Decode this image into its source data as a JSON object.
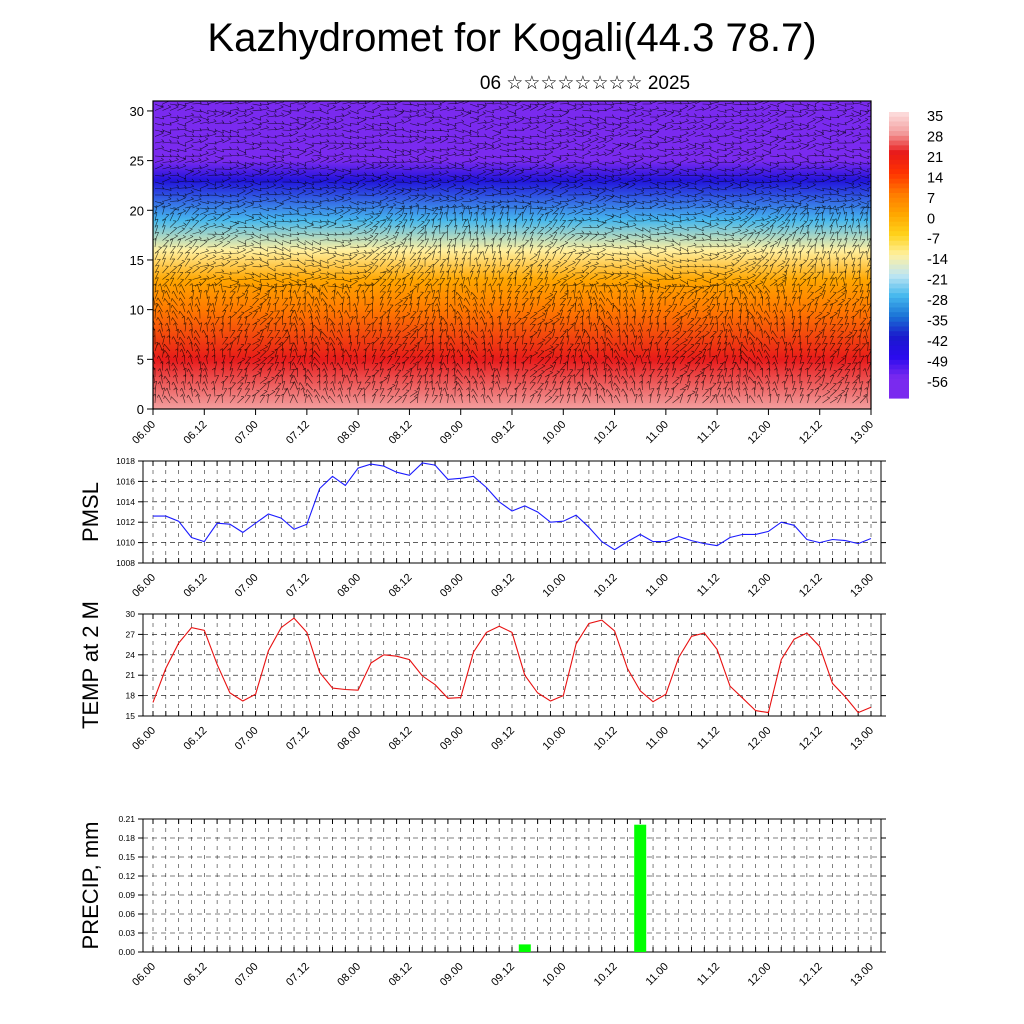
{
  "title": "Kazhydromet for Kogali(44.3 78.7)",
  "subtitle": "06 ☆☆☆☆☆☆☆☆ 2025",
  "colors": {
    "pmsl_line": "#1a1aff",
    "temp_line": "#e81010",
    "precip_bar": "#00ff00",
    "grid": "#000000"
  },
  "chart_data": [
    {
      "type": "heatmap",
      "title": "",
      "xlabel": "",
      "ylabel": "",
      "x_tick_labels": [
        "06.00",
        "06.12",
        "07.00",
        "07.12",
        "08.00",
        "08.12",
        "09.00",
        "09.12",
        "10.00",
        "10.12",
        "11.00",
        "11.12",
        "12.00",
        "12.12",
        "13.00"
      ],
      "ylim": [
        0,
        31
      ],
      "y_ticks": [
        0,
        5,
        10,
        15,
        20,
        25,
        30
      ],
      "colorbar_labels": [
        "35",
        "28",
        "21",
        "14",
        "7",
        "0",
        "-7",
        "-14",
        "-21",
        "-28",
        "-35",
        "-42",
        "-49",
        "-56"
      ],
      "colorbar_colors": [
        "#fde0e0",
        "#f3a0a0",
        "#e81a1a",
        "#ff3300",
        "#ff7a00",
        "#ffa600",
        "#ffd21a",
        "#fff0a0",
        "#bfe6f2",
        "#46b8ee",
        "#1a73d6",
        "#1a1acc",
        "#2a0aee",
        "#7a2aef"
      ],
      "temperature_by_level": [
        {
          "level": 0,
          "value": 28
        },
        {
          "level": 5,
          "value": 21
        },
        {
          "level": 10,
          "value": 7
        },
        {
          "level": 13,
          "value": 0
        },
        {
          "level": 16,
          "value": -14
        },
        {
          "level": 19,
          "value": -28
        },
        {
          "level": 23,
          "value": -45
        },
        {
          "level": 25,
          "value": -56
        },
        {
          "level": 28,
          "value": -58
        },
        {
          "level": 31,
          "value": -58
        }
      ],
      "wind_barbs": true
    },
    {
      "type": "line",
      "xlabel": "",
      "ylabel": "PMSL",
      "ylim": [
        1008,
        1018
      ],
      "y_ticks": [
        1008,
        1010,
        1012,
        1014,
        1016,
        1018
      ],
      "x_tick_labels": [
        "06.00",
        "06.12",
        "07.00",
        "07.12",
        "08.00",
        "08.12",
        "09.00",
        "09.12",
        "10.00",
        "10.12",
        "11.00",
        "11.12",
        "12.00",
        "12.12",
        "13.00"
      ],
      "grid": true,
      "series": [
        {
          "values": [
            1012.6,
            1012.6,
            1012.1,
            1010.5,
            1010.1,
            1011.9,
            1011.8,
            1011.0,
            1011.9,
            1012.8,
            1012.4,
            1011.3,
            1011.8,
            1015.3,
            1016.5,
            1015.6,
            1017.3,
            1017.7,
            1017.5,
            1016.9,
            1016.6,
            1017.8,
            1017.6,
            1016.2,
            1016.3,
            1016.5,
            1015.4,
            1014.0,
            1013.1,
            1013.6,
            1013.0,
            1012.0,
            1012.1,
            1012.7,
            1011.5,
            1010.1,
            1009.3,
            1010.1,
            1010.8,
            1010.1,
            1010.1,
            1010.6,
            1010.2,
            1009.9,
            1009.7,
            1010.5,
            1010.8,
            1010.8,
            1011.1,
            1012.0,
            1011.7,
            1010.3,
            1010.0,
            1010.3,
            1010.2,
            1009.9,
            1010.4
          ]
        }
      ]
    },
    {
      "type": "line",
      "xlabel": "",
      "ylabel": "TEMP at 2 M",
      "ylim": [
        15,
        30
      ],
      "y_ticks": [
        15,
        18,
        21,
        24,
        27,
        30
      ],
      "x_tick_labels": [
        "06.00",
        "06.12",
        "07.00",
        "07.12",
        "08.00",
        "08.12",
        "09.00",
        "09.12",
        "10.00",
        "10.12",
        "11.00",
        "11.12",
        "12.00",
        "12.12",
        "13.00"
      ],
      "grid": true,
      "series": [
        {
          "values": [
            17.0,
            22.0,
            25.7,
            28.0,
            27.6,
            22.6,
            18.4,
            17.2,
            18.2,
            24.6,
            28.0,
            29.4,
            27.3,
            21.4,
            19.1,
            18.9,
            18.8,
            22.8,
            24.0,
            23.8,
            23.3,
            20.9,
            19.6,
            17.6,
            17.7,
            24.4,
            27.3,
            28.2,
            27.3,
            21.0,
            18.4,
            17.2,
            18.0,
            25.6,
            28.6,
            29.1,
            27.5,
            22.0,
            18.7,
            17.1,
            18.2,
            23.6,
            26.7,
            27.2,
            24.8,
            19.4,
            17.6,
            15.8,
            15.5,
            23.3,
            26.3,
            27.2,
            25.2,
            19.8,
            17.8,
            15.5,
            16.3
          ]
        }
      ]
    },
    {
      "type": "bar",
      "xlabel": "",
      "ylabel": "PRECIP, mm",
      "ylim": [
        0,
        0.21
      ],
      "y_tick_labels": [
        "0.00",
        "0.03",
        "0.06",
        "0.09",
        "0.12",
        "0.15",
        "0.18",
        "0.21"
      ],
      "x_tick_labels": [
        "06.00",
        "06.12",
        "07.00",
        "07.12",
        "08.00",
        "08.12",
        "09.00",
        "09.12",
        "10.00",
        "10.12",
        "11.00",
        "11.12",
        "12.00",
        "12.12",
        "13.00"
      ],
      "grid": true,
      "bars": [
        {
          "time_index": 14.5,
          "value": 0.012
        },
        {
          "time_index": 19.0,
          "value": 0.201
        }
      ]
    }
  ]
}
